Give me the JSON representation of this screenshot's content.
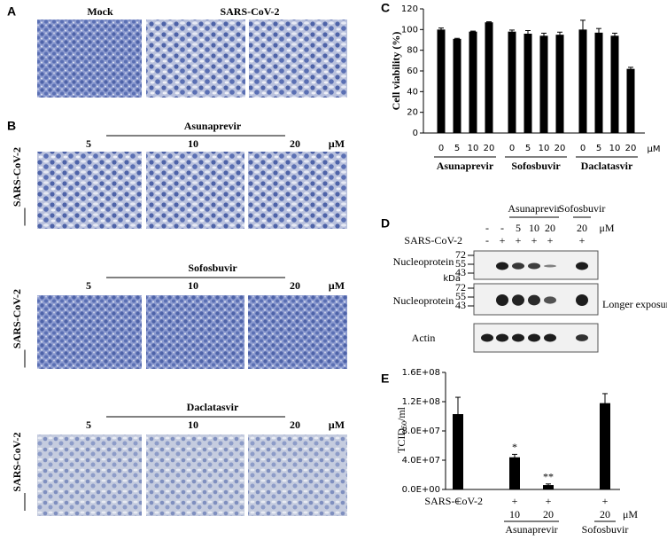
{
  "panels": {
    "a": {
      "label": "A",
      "headers": {
        "mock": "Mock",
        "infected": "SARS-CoV-2"
      }
    },
    "b": {
      "label": "B",
      "rows": [
        {
          "drug": "Asunaprevir",
          "concentrations": [
            "5",
            "10",
            "20"
          ],
          "unit": "μM",
          "side_label": "SARS-CoV-2"
        },
        {
          "drug": "Sofosbuvir",
          "concentrations": [
            "5",
            "10",
            "20"
          ],
          "unit": "μM",
          "side_label": "SARS-CoV-2"
        },
        {
          "drug": "Daclatasvir",
          "concentrations": [
            "5",
            "10",
            "20"
          ],
          "unit": "μM",
          "side_label": "SARS-CoV-2"
        }
      ]
    },
    "d": {
      "label": "D",
      "groups": [
        {
          "name": null,
          "concentrations": [
            "-",
            "-"
          ]
        },
        {
          "name": "Asunaprevir",
          "concentrations": [
            "5",
            "10",
            "20"
          ]
        },
        {
          "name": "Sofosbuvir",
          "concentrations": [
            "20"
          ]
        }
      ],
      "unit": "μM",
      "infection_label": "SARS-CoV-2",
      "infection": [
        "-",
        "+",
        "+",
        "+",
        "+",
        "+"
      ],
      "blots": [
        {
          "label": "Nucleoprotein",
          "markers": [
            "72",
            "55",
            "43"
          ]
        },
        {
          "label": "Nucleoprotein",
          "marker_unit": "kDa",
          "markers": [
            "72",
            "55",
            "43"
          ],
          "note": "Longer exposure"
        },
        {
          "label": "Actin"
        }
      ]
    }
  },
  "chart_data": [
    {
      "type": "bar",
      "label": "C",
      "y_label": "Cell viability (%)",
      "ylim": [
        0,
        120
      ],
      "yticks": [
        0,
        20,
        40,
        60,
        80,
        100,
        120
      ],
      "unit": "μM",
      "color": "#000000",
      "groups": [
        {
          "name": "Asunaprevir",
          "categories": [
            "0",
            "5",
            "10",
            "20"
          ],
          "values": [
            100,
            91,
            98,
            107
          ],
          "errors": [
            1.5,
            0.5,
            0.5,
            0.5
          ]
        },
        {
          "name": "Sofosbuvir",
          "categories": [
            "0",
            "5",
            "10",
            "20"
          ],
          "values": [
            98,
            96,
            94,
            95
          ],
          "errors": [
            1.5,
            3,
            2.5,
            2.5
          ]
        },
        {
          "name": "Daclatasvir",
          "categories": [
            "0",
            "5",
            "10",
            "20"
          ],
          "values": [
            100,
            97,
            94,
            62
          ],
          "errors": [
            9,
            4,
            2.5,
            1.5
          ]
        }
      ]
    },
    {
      "type": "bar",
      "label": "E",
      "y_label": {
        "text": "TCID",
        "subscript": "50",
        "suffix": "/ml"
      },
      "ylim": [
        0,
        160000000
      ],
      "yticks": [
        {
          "value": 0,
          "label": "0.0E+00"
        },
        {
          "value": 40000000,
          "label": "4.0E+07"
        },
        {
          "value": 80000000,
          "label": "8.0E+07"
        },
        {
          "value": 120000000,
          "label": "1.2E+08"
        },
        {
          "value": 160000000,
          "label": "1.6E+08"
        }
      ],
      "color": "#000000",
      "condition_label": "SARS-CoV-2",
      "unit": "μM",
      "groups": [
        {
          "name": null,
          "conditions": [
            "+"
          ],
          "categories": [
            null
          ],
          "values": [
            103000000
          ],
          "errors": [
            23000000
          ],
          "annotations": [
            null
          ]
        },
        {
          "name": "Asunaprevir",
          "conditions": [
            "+",
            "+"
          ],
          "categories": [
            "10",
            "20"
          ],
          "values": [
            44000000,
            6000000
          ],
          "errors": [
            4000000,
            1500000
          ],
          "annotations": [
            "*",
            "**"
          ]
        },
        {
          "name": "Sofosbuvir",
          "conditions": [
            "+"
          ],
          "categories": [
            "20"
          ],
          "values": [
            118000000
          ],
          "errors": [
            13000000
          ],
          "annotations": [
            null
          ]
        }
      ]
    }
  ]
}
